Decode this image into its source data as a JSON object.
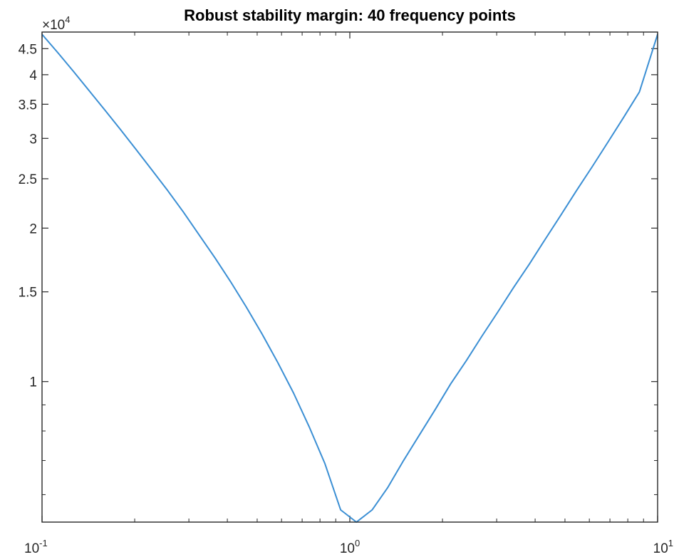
{
  "chart_data": {
    "type": "line",
    "title": "Robust stability margin: 40 frequency points",
    "xlabel": "",
    "ylabel": "",
    "x_scale": "log",
    "y_scale": "log",
    "xlim": [
      0.1,
      10
    ],
    "ylim": [
      5300,
      48500
    ],
    "y_multiplier": {
      "base": "×10",
      "exponent": "4"
    },
    "x_ticks": [
      {
        "value": 0.1,
        "base": "10",
        "exponent": "-1"
      },
      {
        "value": 1,
        "base": "10",
        "exponent": "0"
      },
      {
        "value": 10,
        "base": "10",
        "exponent": "1"
      }
    ],
    "y_ticks": [
      {
        "value": 10000,
        "label": "1"
      },
      {
        "value": 15000,
        "label": "1.5"
      },
      {
        "value": 20000,
        "label": "2"
      },
      {
        "value": 25000,
        "label": "2.5"
      },
      {
        "value": 30000,
        "label": "3"
      },
      {
        "value": 35000,
        "label": "3.5"
      },
      {
        "value": 40000,
        "label": "4"
      },
      {
        "value": 45000,
        "label": "4.5"
      }
    ],
    "y_minor_ticks": [
      6000,
      7000,
      8000,
      9000
    ],
    "grid": false,
    "series": [
      {
        "color": "#3b8fd4",
        "x": [
          0.1,
          0.1125,
          0.1265,
          0.1423,
          0.16,
          0.18,
          0.2024,
          0.2276,
          0.256,
          0.288,
          0.3239,
          0.3644,
          0.4099,
          0.461,
          0.5186,
          0.5833,
          0.6561,
          0.738,
          0.8302,
          0.9338,
          1.0504,
          1.1815,
          1.3289,
          1.4948,
          1.6814,
          1.8913,
          2.1274,
          2.3929,
          2.6915,
          3.0275,
          3.4054,
          3.8304,
          4.3085,
          4.8462,
          5.4511,
          6.1315,
          6.8968,
          7.7576,
          8.7258,
          10.0
        ],
        "y": [
          48000,
          44200,
          40600,
          37200,
          34100,
          31200,
          28500,
          26000,
          23700,
          21500,
          19400,
          17500,
          15700,
          14000,
          12400,
          10900,
          9500,
          8150,
          6900,
          5600,
          5300,
          5600,
          6200,
          7000,
          7850,
          8800,
          9900,
          11000,
          12300,
          13700,
          15300,
          17000,
          19000,
          21200,
          23700,
          26400,
          29500,
          33000,
          37000,
          48000
        ]
      }
    ]
  }
}
